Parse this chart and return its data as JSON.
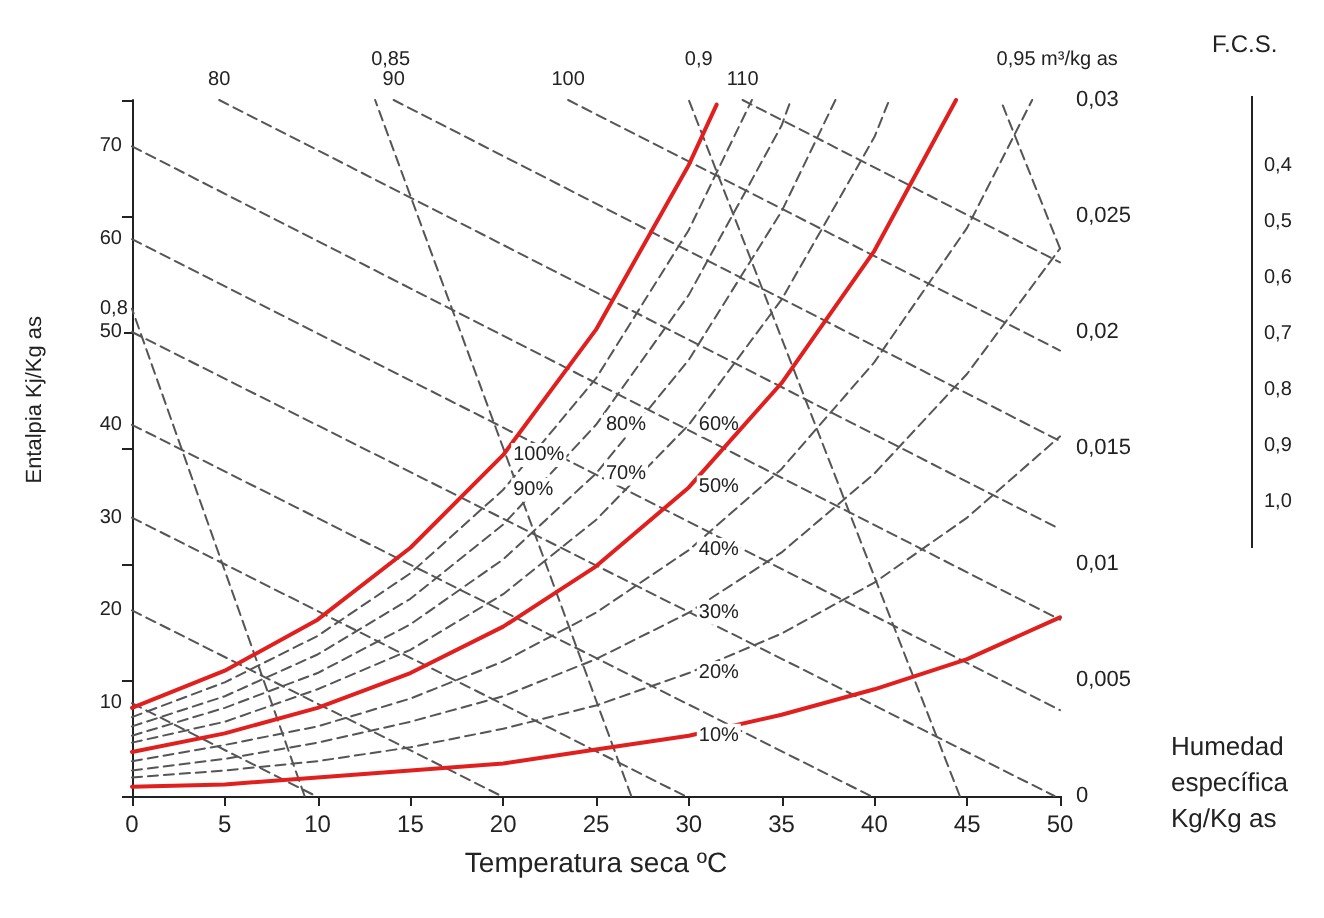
{
  "chart_data": {
    "type": "line",
    "xlabel": "Temperatura seca ºC",
    "ylabel": "Humedad específica Kg/Kg as",
    "xlim": [
      0,
      50
    ],
    "xticks": [
      0,
      5,
      10,
      15,
      20,
      25,
      30,
      35,
      40,
      45,
      50
    ],
    "ylim": [
      0,
      0.03
    ],
    "yticks": [
      0,
      {
        "value": 0.005,
        "label": "0,005"
      },
      {
        "value": 0.01,
        "label": "0,01"
      },
      {
        "value": 0.015,
        "label": "0,015"
      },
      {
        "value": 0.02,
        "label": "0,02"
      },
      {
        "value": 0.025,
        "label": "0,025"
      },
      {
        "value": 0.03,
        "label": "0,03"
      }
    ],
    "grid": false,
    "legend": false,
    "marker": "none",
    "annotations": [
      "Entalpia Kj/Kg as",
      "F.C.S.",
      "0,4",
      "0,5",
      "0,6",
      "0,7",
      "0,8",
      "0,9",
      "1,0"
    ],
    "series": [
      {
        "name": "100%",
        "color": "#e0201e",
        "line_style": "solid",
        "x": [
          0,
          5,
          10,
          15,
          20,
          25,
          30,
          31.5
        ],
        "values": [
          0.0038,
          0.0054,
          0.0076,
          0.0107,
          0.0147,
          0.0201,
          0.0272,
          0.0298
        ]
      },
      {
        "name": "90%",
        "color": "#555555",
        "line_style": "dashed",
        "x": [
          0,
          5,
          10,
          15,
          20,
          25,
          30,
          33.4
        ],
        "values": [
          0.0034,
          0.0049,
          0.0069,
          0.0096,
          0.0132,
          0.018,
          0.0244,
          0.03
        ]
      },
      {
        "name": "80%",
        "color": "#555555",
        "line_style": "dashed",
        "x": [
          0,
          5,
          10,
          15,
          20,
          25,
          30,
          35,
          35.5
        ],
        "values": [
          0.003,
          0.0043,
          0.0061,
          0.0085,
          0.0117,
          0.016,
          0.0216,
          0.0289,
          0.03
        ]
      },
      {
        "name": "70%",
        "color": "#555555",
        "line_style": "dashed",
        "x": [
          0,
          5,
          10,
          15,
          20,
          25,
          30,
          35,
          37.9
        ],
        "values": [
          0.0026,
          0.0038,
          0.0053,
          0.0074,
          0.0102,
          0.0139,
          0.0188,
          0.0252,
          0.03
        ]
      },
      {
        "name": "60%",
        "color": "#555555",
        "line_style": "dashed",
        "x": [
          0,
          5,
          10,
          15,
          20,
          25,
          30,
          35,
          40,
          40.8
        ],
        "values": [
          0.0023,
          0.0032,
          0.0046,
          0.0063,
          0.0087,
          0.0119,
          0.016,
          0.0214,
          0.0284,
          0.03
        ]
      },
      {
        "name": "50%",
        "color": "#e0201e",
        "line_style": "solid",
        "x": [
          0,
          5,
          10,
          15,
          20,
          25,
          30,
          35,
          40,
          44.4
        ],
        "values": [
          0.0019,
          0.0027,
          0.0038,
          0.0053,
          0.0073,
          0.0099,
          0.0133,
          0.0178,
          0.0235,
          0.03
        ]
      },
      {
        "name": "40%",
        "color": "#555555",
        "line_style": "dashed",
        "x": [
          0,
          5,
          10,
          15,
          20,
          25,
          30,
          35,
          40,
          45,
          48.5
        ],
        "values": [
          0.0015,
          0.0022,
          0.003,
          0.0042,
          0.0058,
          0.0079,
          0.0106,
          0.0141,
          0.0187,
          0.0245,
          0.03
        ]
      },
      {
        "name": "30%",
        "color": "#555555",
        "line_style": "dashed",
        "x": [
          0,
          5,
          10,
          15,
          20,
          25,
          30,
          35,
          40,
          45,
          50
        ],
        "values": [
          0.0011,
          0.0016,
          0.0023,
          0.0032,
          0.0043,
          0.0059,
          0.0079,
          0.0105,
          0.0139,
          0.0182,
          0.0236
        ]
      },
      {
        "name": "20%",
        "color": "#555555",
        "line_style": "dashed",
        "x": [
          0,
          5,
          10,
          15,
          20,
          25,
          30,
          35,
          40,
          45,
          50
        ],
        "values": [
          0.0008,
          0.0011,
          0.0015,
          0.0021,
          0.0029,
          0.0039,
          0.0053,
          0.007,
          0.0092,
          0.012,
          0.0155
        ]
      },
      {
        "name": "10%",
        "color": "#e0201e",
        "line_style": "solid",
        "x": [
          0,
          5,
          10,
          15,
          20,
          25,
          30,
          35,
          40,
          45,
          50
        ],
        "values": [
          0.0004,
          0.0005,
          0.0008,
          0.0011,
          0.0014,
          0.002,
          0.0026,
          0.0035,
          0.0046,
          0.0059,
          0.0077
        ]
      },
      {
        "name": "0,8",
        "color": "#555555",
        "line_style": "dashed",
        "x": [
          9.3,
          0
        ],
        "values": [
          0,
          0.021
        ]
      },
      {
        "name": "0,85",
        "color": "#555555",
        "line_style": "dashed",
        "x": [
          26.9,
          13.1
        ],
        "values": [
          0,
          0.03
        ]
      },
      {
        "name": "0,9",
        "color": "#555555",
        "line_style": "dashed",
        "x": [
          44.6,
          30
        ],
        "values": [
          0,
          0.03
        ]
      },
      {
        "name": "0,95 m³/kg as",
        "color": "#555555",
        "line_style": "dashed",
        "x": [
          50,
          46.8
        ],
        "values": [
          0.0236,
          0.03
        ]
      },
      {
        "name": "10",
        "color": "#555555",
        "line_style": "dashed",
        "x": [
          0,
          9.9
        ],
        "values": [
          0.004,
          0
        ]
      },
      {
        "name": "20",
        "color": "#555555",
        "line_style": "dashed",
        "x": [
          0,
          19.9
        ],
        "values": [
          0.008,
          0
        ]
      },
      {
        "name": "30",
        "color": "#555555",
        "line_style": "dashed",
        "x": [
          0,
          29.8
        ],
        "values": [
          0.012,
          0
        ]
      },
      {
        "name": "40",
        "color": "#555555",
        "line_style": "dashed",
        "x": [
          0,
          39.8
        ],
        "values": [
          0.016,
          0
        ]
      },
      {
        "name": "50",
        "color": "#555555",
        "line_style": "dashed",
        "x": [
          0,
          49.7
        ],
        "values": [
          0.02,
          0
        ]
      },
      {
        "name": "60",
        "color": "#555555",
        "line_style": "dashed",
        "x": [
          0,
          50
        ],
        "values": [
          0.024,
          0.0037
        ]
      },
      {
        "name": "70",
        "color": "#555555",
        "line_style": "dashed",
        "x": [
          0,
          50
        ],
        "values": [
          0.028,
          0.0076
        ]
      },
      {
        "name": "80",
        "color": "#555555",
        "line_style": "dashed",
        "x": [
          4.7,
          50
        ],
        "values": [
          0.03,
          0.0115
        ]
      },
      {
        "name": "90",
        "color": "#555555",
        "line_style": "dashed",
        "x": [
          14.1,
          50
        ],
        "values": [
          0.03,
          0.0153
        ]
      },
      {
        "name": "100",
        "color": "#555555",
        "line_style": "dashed",
        "x": [
          23.5,
          50
        ],
        "values": [
          0.03,
          0.0192
        ]
      },
      {
        "name": "110",
        "color": "#555555",
        "line_style": "dashed",
        "x": [
          32.9,
          50
        ],
        "values": [
          0.03,
          0.023
        ]
      }
    ]
  }
}
